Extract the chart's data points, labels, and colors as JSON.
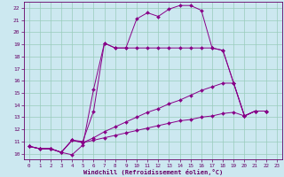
{
  "xlabel": "Windchill (Refroidissement éolien,°C)",
  "bg_color": "#cce8f0",
  "line_color": "#880088",
  "grid_color": "#99ccbb",
  "xlim": [
    -0.5,
    23.5
  ],
  "ylim": [
    9.5,
    22.5
  ],
  "xticks": [
    0,
    1,
    2,
    3,
    4,
    5,
    6,
    7,
    8,
    9,
    10,
    11,
    12,
    13,
    14,
    15,
    16,
    17,
    18,
    19,
    20,
    21,
    22,
    23
  ],
  "yticks": [
    10,
    11,
    12,
    13,
    14,
    15,
    16,
    17,
    18,
    19,
    20,
    21,
    22
  ],
  "series": [
    {
      "x": [
        0,
        1,
        2,
        3,
        4,
        5,
        6,
        7,
        8,
        9,
        10,
        11,
        12,
        13,
        14,
        15,
        16,
        17,
        18,
        19,
        20,
        21,
        22
      ],
      "y": [
        10.6,
        10.4,
        10.4,
        10.1,
        9.9,
        10.7,
        15.3,
        19.1,
        18.7,
        18.7,
        21.1,
        21.6,
        21.3,
        21.9,
        22.2,
        22.2,
        21.8,
        18.7,
        18.5,
        15.8,
        13.1,
        13.5,
        13.5
      ]
    },
    {
      "x": [
        0,
        1,
        2,
        3,
        4,
        5,
        6,
        7,
        8,
        9,
        10,
        11,
        12,
        13,
        14,
        15,
        16,
        17,
        18,
        19,
        20,
        21,
        22
      ],
      "y": [
        10.6,
        10.4,
        10.4,
        10.1,
        11.1,
        11.0,
        13.5,
        19.1,
        18.7,
        18.7,
        18.7,
        18.7,
        18.7,
        18.7,
        18.7,
        18.7,
        18.7,
        18.7,
        18.5,
        15.8,
        13.1,
        13.5,
        13.5
      ]
    },
    {
      "x": [
        0,
        1,
        2,
        3,
        4,
        5,
        6,
        7,
        8,
        9,
        10,
        11,
        12,
        13,
        14,
        15,
        16,
        17,
        18,
        19,
        20,
        21,
        22
      ],
      "y": [
        10.6,
        10.4,
        10.4,
        10.1,
        11.1,
        10.9,
        11.3,
        11.8,
        12.2,
        12.6,
        13.0,
        13.4,
        13.7,
        14.1,
        14.4,
        14.8,
        15.2,
        15.5,
        15.8,
        15.8,
        13.1,
        13.5,
        13.5
      ]
    },
    {
      "x": [
        0,
        1,
        2,
        3,
        4,
        5,
        6,
        7,
        8,
        9,
        10,
        11,
        12,
        13,
        14,
        15,
        16,
        17,
        18,
        19,
        20,
        21,
        22
      ],
      "y": [
        10.6,
        10.4,
        10.4,
        10.1,
        11.1,
        10.9,
        11.1,
        11.3,
        11.5,
        11.7,
        11.9,
        12.1,
        12.3,
        12.5,
        12.7,
        12.8,
        13.0,
        13.1,
        13.3,
        13.4,
        13.1,
        13.5,
        13.5
      ]
    }
  ]
}
